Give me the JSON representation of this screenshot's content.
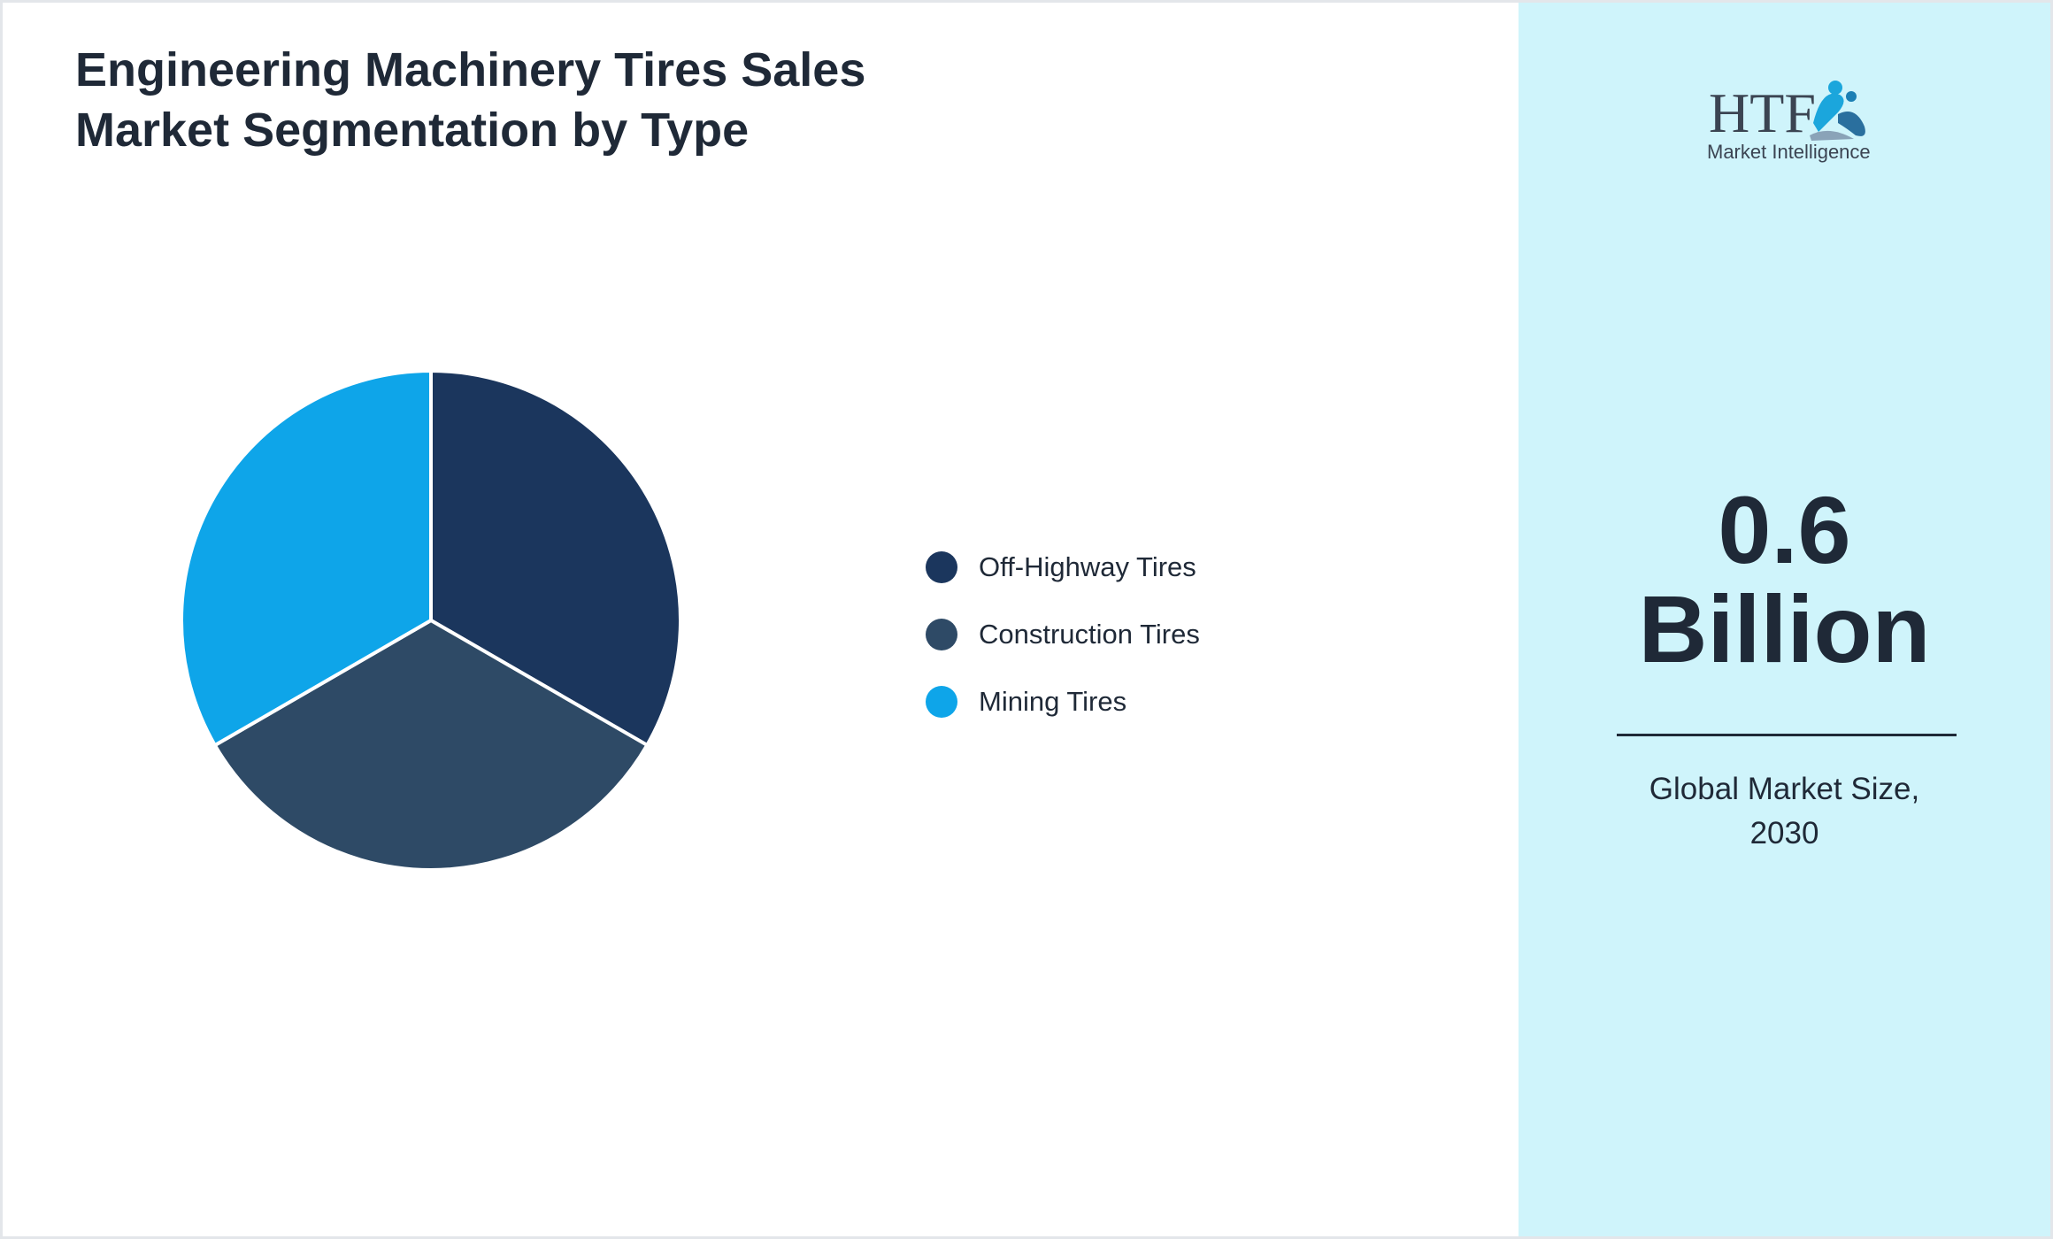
{
  "title": {
    "line1": "Engineering Machinery Tires Sales",
    "line2": "Market Segmentation by Type"
  },
  "chart_data": {
    "type": "pie",
    "categories": [
      "Off-Highway Tires",
      "Construction Tires",
      "Mining Tires"
    ],
    "values": [
      33.33,
      33.33,
      33.34
    ],
    "colors": [
      "#1b365d",
      "#2e4a66",
      "#0ea5e9"
    ],
    "legend_position": "right"
  },
  "highlight": {
    "value_line1": "0.6",
    "value_line2": "Billion",
    "caption_line1": "Global Market Size,",
    "caption_line2": "2030"
  },
  "logo": {
    "text": "HTF",
    "subtext": "Market Intelligence"
  },
  "colors": {
    "panel_background": "#cff4fb",
    "text": "#1f2937"
  }
}
